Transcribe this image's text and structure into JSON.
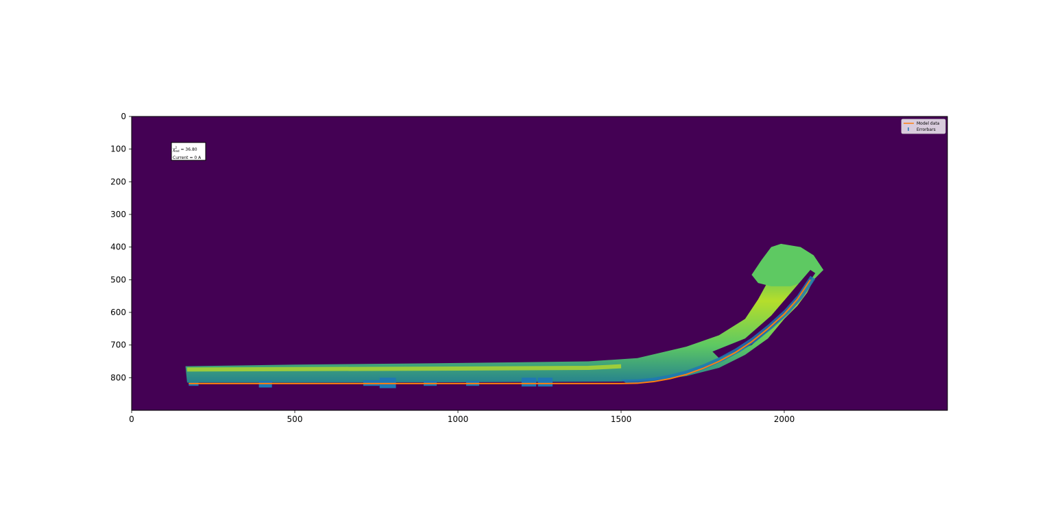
{
  "chart_data": {
    "type": "line",
    "title": "",
    "xlabel": "",
    "ylabel": "",
    "xlim": [
      0,
      2500
    ],
    "ylim": [
      900,
      0
    ],
    "y_inverted": true,
    "x_ticks": [
      0,
      500,
      1000,
      1500,
      2000
    ],
    "y_ticks": [
      0,
      100,
      200,
      300,
      400,
      500,
      600,
      700,
      800
    ],
    "background_image": "viridis intensity image of a curved beam, dark purple background",
    "colors": {
      "background": "#440154",
      "image_low": "#26828e",
      "image_mid": "#35b779",
      "image_high": "#b5de2b",
      "model": "#ff7f0e",
      "errorbars": "#1f77b4"
    },
    "annotation": {
      "chi_symbol": "χ",
      "chi_exponent": "2",
      "chi_subscript": "red",
      "chi_value": " = 36.80",
      "current": "Current = 0 A"
    },
    "legend": {
      "position": "top-right",
      "entries": [
        "Model data",
        "Errorbars"
      ]
    },
    "series": [
      {
        "name": "Model data",
        "x": [
          175,
          300,
          500,
          700,
          900,
          1100,
          1300,
          1500,
          1550,
          1600,
          1650,
          1700,
          1750,
          1800,
          1850,
          1900,
          1950,
          2000,
          2040,
          2080
        ],
        "y": [
          818,
          818,
          818,
          818,
          818,
          818,
          818,
          818,
          817,
          812,
          803,
          790,
          772,
          750,
          723,
          690,
          650,
          605,
          560,
          500
        ]
      },
      {
        "name": "Errorbars",
        "bars": [
          {
            "x0": 175,
            "x1": 205,
            "y0": 815,
            "y1": 825
          },
          {
            "x0": 390,
            "x1": 430,
            "y0": 810,
            "y1": 830
          },
          {
            "x0": 710,
            "x1": 760,
            "y0": 808,
            "y1": 825
          },
          {
            "x0": 760,
            "x1": 810,
            "y0": 800,
            "y1": 832
          },
          {
            "x0": 895,
            "x1": 935,
            "y0": 810,
            "y1": 825
          },
          {
            "x0": 1025,
            "x1": 1065,
            "y0": 810,
            "y1": 825
          },
          {
            "x0": 1195,
            "x1": 1240,
            "y0": 800,
            "y1": 827
          },
          {
            "x0": 1245,
            "x1": 1290,
            "y0": 800,
            "y1": 827
          },
          {
            "x0": 1500,
            "x1": 2060,
            "curve": true
          }
        ]
      }
    ]
  }
}
